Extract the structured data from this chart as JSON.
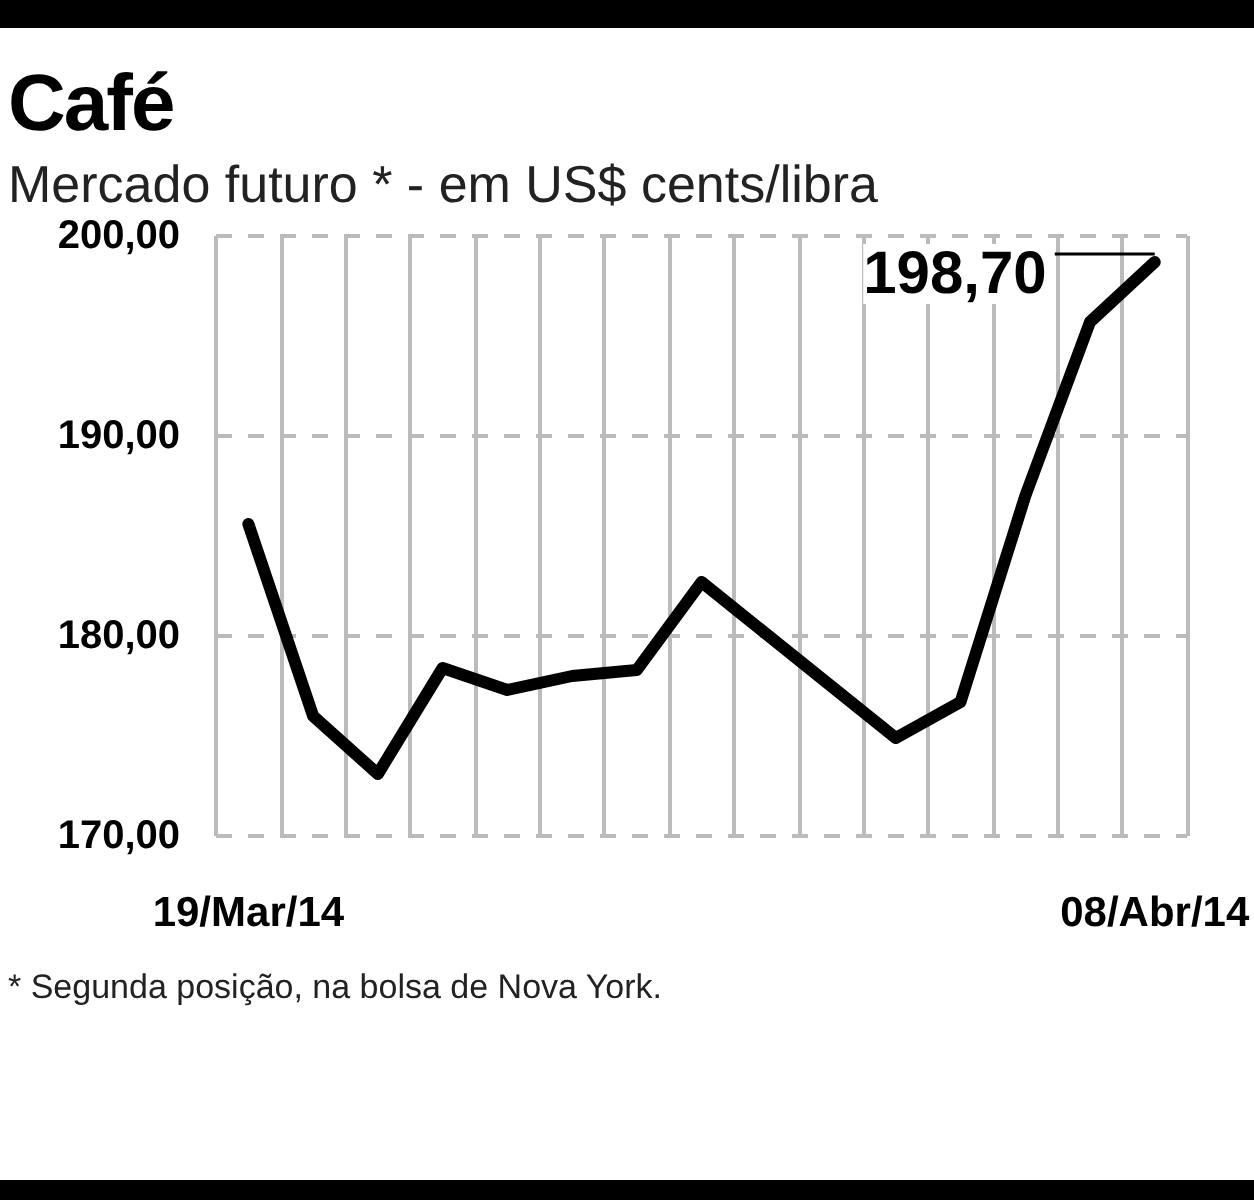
{
  "chart_data": {
    "type": "line",
    "title": "Café",
    "subtitle": "Mercado futuro * - em US$ cents/libra",
    "categories": [
      "19/Mar/14",
      null,
      null,
      null,
      null,
      null,
      null,
      null,
      null,
      null,
      null,
      null,
      null,
      null,
      "08/Abr/14"
    ],
    "series": [
      {
        "color": "#000000",
        "values": [
          185.6,
          176.0,
          173.1,
          178.4,
          177.3,
          178.0,
          178.3,
          182.7,
          180.1,
          177.5,
          174.9,
          176.7,
          187.0,
          195.7,
          198.7
        ]
      }
    ],
    "ylim": [
      170,
      200
    ],
    "yticks": [
      {
        "value": 170,
        "label": "170,00"
      },
      {
        "value": 180,
        "label": "180,00"
      },
      {
        "value": 190,
        "label": "190,00"
      },
      {
        "value": 200,
        "label": "200,00"
      }
    ],
    "annotations": [
      {
        "text": "198,70",
        "x": "08/Abr/14",
        "y": 198.7
      },
      "* Segunda posição, na bolsa de Nova York."
    ],
    "grid": true,
    "marker": "none",
    "line_style": "solid"
  }
}
